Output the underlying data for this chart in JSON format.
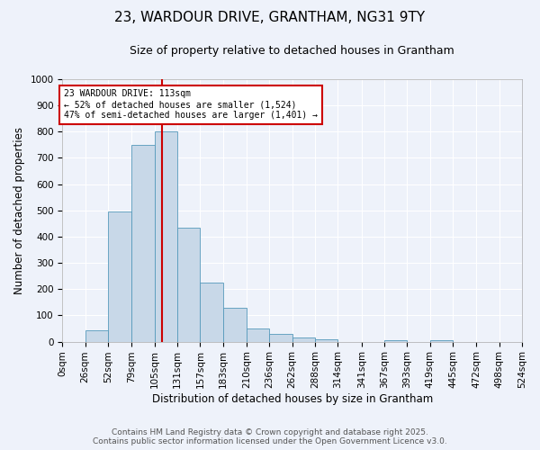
{
  "title1": "23, WARDOUR DRIVE, GRANTHAM, NG31 9TY",
  "title2": "Size of property relative to detached houses in Grantham",
  "xlabel": "Distribution of detached houses by size in Grantham",
  "ylabel": "Number of detached properties",
  "bin_edges": [
    0,
    26,
    52,
    79,
    105,
    131,
    157,
    183,
    210,
    236,
    262,
    288,
    314,
    341,
    367,
    393,
    419,
    445,
    472,
    498,
    524
  ],
  "bin_labels": [
    "0sqm",
    "26sqm",
    "52sqm",
    "79sqm",
    "105sqm",
    "131sqm",
    "157sqm",
    "183sqm",
    "210sqm",
    "236sqm",
    "262sqm",
    "288sqm",
    "314sqm",
    "341sqm",
    "367sqm",
    "393sqm",
    "419sqm",
    "445sqm",
    "472sqm",
    "498sqm",
    "524sqm"
  ],
  "counts": [
    0,
    42,
    495,
    750,
    800,
    435,
    225,
    128,
    50,
    28,
    15,
    8,
    0,
    0,
    7,
    0,
    7,
    0,
    0,
    0
  ],
  "bar_color": "#c8d8e8",
  "bar_edge_color": "#5599bb",
  "vline_x": 113,
  "ylim": [
    0,
    1000
  ],
  "yticks": [
    0,
    100,
    200,
    300,
    400,
    500,
    600,
    700,
    800,
    900,
    1000
  ],
  "annotation_text": "23 WARDOUR DRIVE: 113sqm\n← 52% of detached houses are smaller (1,524)\n47% of semi-detached houses are larger (1,401) →",
  "annotation_box_color": "#ffffff",
  "annotation_box_edge": "#cc0000",
  "vline_color": "#cc0000",
  "footnote1": "Contains HM Land Registry data © Crown copyright and database right 2025.",
  "footnote2": "Contains public sector information licensed under the Open Government Licence v3.0.",
  "bg_color": "#eef2fa",
  "grid_color": "#ffffff",
  "title_fontsize": 11,
  "subtitle_fontsize": 9,
  "axis_label_fontsize": 8.5,
  "tick_fontsize": 7.5,
  "footnote_fontsize": 6.5
}
